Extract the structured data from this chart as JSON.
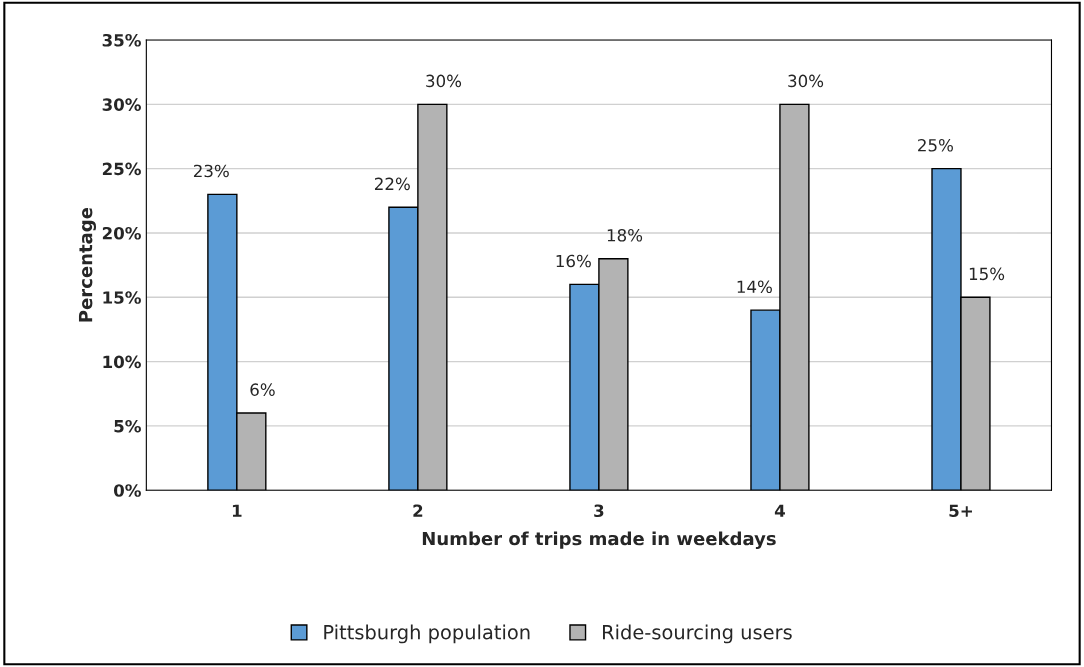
{
  "chart_data": {
    "type": "bar",
    "xlabel": "Number of trips made in weekdays",
    "ylabel": "Percentage",
    "categories": [
      "1",
      "2",
      "3",
      "4",
      "5+"
    ],
    "series": [
      {
        "name": "Pittsburgh population",
        "color": "#5b9bd5",
        "values": [
          23,
          22,
          16,
          14,
          25
        ],
        "value_labels": [
          "23%",
          "22%",
          "16%",
          "14%",
          "25%"
        ]
      },
      {
        "name": "Ride-sourcing users",
        "color": "#b3b3b3",
        "values": [
          6,
          30,
          18,
          30,
          15
        ],
        "value_labels": [
          "6%",
          "30%",
          "18%",
          "30%",
          "15%"
        ]
      }
    ],
    "ylim": [
      0,
      35
    ],
    "yticks": [
      {
        "value": 0,
        "label": "0%"
      },
      {
        "value": 5,
        "label": "5%"
      },
      {
        "value": 10,
        "label": "10%"
      },
      {
        "value": 15,
        "label": "15%"
      },
      {
        "value": 20,
        "label": "20%"
      },
      {
        "value": 25,
        "label": "25%"
      },
      {
        "value": 30,
        "label": "30%"
      },
      {
        "value": 35,
        "label": "35%"
      }
    ],
    "grid": "y",
    "legend": "bottom"
  }
}
